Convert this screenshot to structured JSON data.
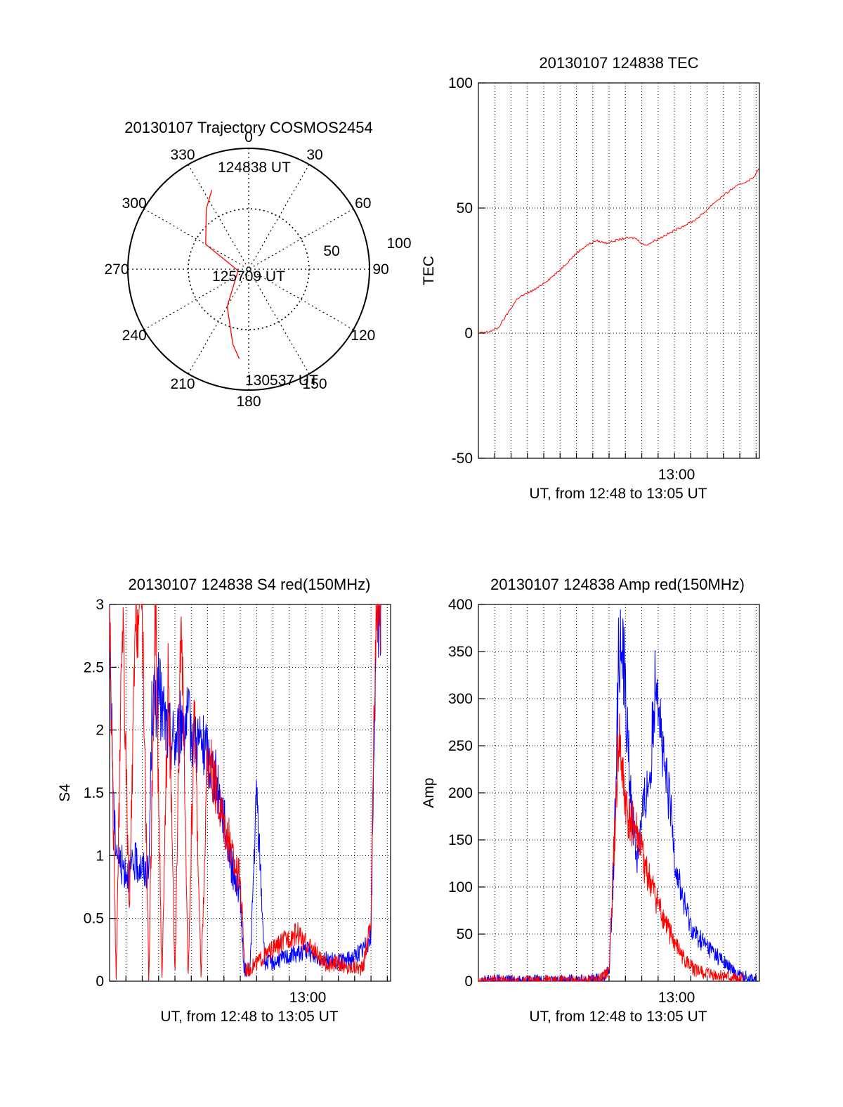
{
  "colors": {
    "red": "#ff0000",
    "blue": "#0000ff",
    "ink": "#000000"
  },
  "chart_data": [
    {
      "type": "polar",
      "title": "20130107 Trajectory COSMOS2454",
      "azimuth_labels": [
        "0",
        "30",
        "60",
        "90",
        "120",
        "150",
        "180",
        "210",
        "240",
        "270",
        "300",
        "330"
      ],
      "radial_labels": [
        "50",
        "100"
      ],
      "grid": true,
      "track": {
        "color": "red",
        "points": [
          {
            "az": 335,
            "el": 25
          },
          {
            "az": 325,
            "el": 35
          },
          {
            "az": 300,
            "el": 53
          },
          {
            "az": 262,
            "el": 82
          },
          {
            "az": 210,
            "el": 58
          },
          {
            "az": 192,
            "el": 33
          },
          {
            "az": 186,
            "el": 23
          }
        ],
        "labels": [
          {
            "text": "124838 UT"
          },
          {
            "text": "125709 UT"
          },
          {
            "text": "130537 UT"
          }
        ]
      }
    },
    {
      "type": "line",
      "title": "20130107 124838 TEC",
      "xlabel": "UT, from 12:48 to 13:05 UT",
      "ylabel": "TEC",
      "xtick_label": "13:00",
      "ylim": [
        -50,
        100
      ],
      "yticks": [
        "-50",
        "0",
        "50",
        "100"
      ],
      "grid": true,
      "series": [
        {
          "color": "red",
          "x_minutes": [
            0.0,
            0.6,
            1.2,
            1.8,
            2.4,
            3.0,
            3.6,
            4.2,
            4.8,
            5.4,
            6.0,
            6.6,
            7.2,
            7.8,
            8.4,
            9.0,
            9.6,
            10.2,
            10.8,
            11.4,
            12.0,
            12.6,
            13.2,
            13.8,
            14.4,
            15.0,
            15.6,
            16.2,
            16.8,
            17.2
          ],
          "values": [
            0.0,
            0.5,
            2.0,
            8.0,
            14.0,
            16.0,
            18.0,
            21.0,
            24.0,
            28.0,
            32.0,
            35.0,
            37.0,
            36.0,
            37.0,
            38.0,
            38.0,
            35.0,
            37.0,
            39.0,
            41.0,
            43.0,
            45.0,
            48.0,
            52.0,
            55.0,
            58.0,
            60.0,
            62.0,
            66.0
          ]
        }
      ]
    },
    {
      "type": "line",
      "title": "20130107 124838 S4 red(150MHz)",
      "xlabel": "UT, from 12:48 to 13:05 UT",
      "ylabel": "S4",
      "xtick_label": "13:00",
      "ylim": [
        0,
        3
      ],
      "yticks": [
        "0",
        "0.5",
        "1",
        "1.5",
        "2",
        "2.5",
        "3"
      ],
      "grid": true,
      "series": [
        {
          "color": "blue",
          "x_minutes": [
            0.0,
            0.3,
            0.6,
            0.9,
            1.2,
            1.6,
            2.0,
            2.4,
            2.6,
            3.0,
            3.5,
            4.0,
            4.5,
            5.0,
            5.5,
            6.0,
            6.5,
            7.0,
            7.5,
            8.0,
            8.2,
            8.4,
            8.6,
            9.0,
            9.5,
            10.0,
            10.5,
            11.0,
            11.5,
            12.0,
            12.5,
            13.0,
            13.5,
            14.0,
            14.5,
            15.0,
            15.5,
            16.0,
            16.3,
            16.6
          ],
          "values": [
            2.7,
            1.2,
            0.95,
            0.9,
            0.85,
            0.95,
            0.9,
            0.85,
            2.2,
            2.3,
            2.0,
            1.9,
            2.1,
            2.0,
            1.9,
            1.8,
            1.6,
            1.3,
            0.9,
            0.7,
            0.1,
            0.08,
            0.1,
            1.5,
            0.15,
            0.15,
            0.18,
            0.2,
            0.22,
            0.25,
            0.2,
            0.18,
            0.17,
            0.15,
            0.17,
            0.2,
            0.25,
            0.35,
            2.8,
            3.0
          ]
        },
        {
          "color": "red",
          "x_minutes": [
            0.0,
            0.4,
            0.8,
            1.2,
            1.6,
            2.0,
            2.4,
            2.8,
            3.2,
            3.6,
            4.0,
            4.4,
            4.8,
            5.2,
            5.6,
            6.0,
            6.5,
            7.0,
            7.5,
            8.0,
            8.3,
            8.6,
            9.0,
            9.5,
            10.0,
            10.5,
            11.0,
            11.5,
            12.0,
            12.5,
            13.0,
            13.5,
            14.0,
            14.5,
            15.0,
            15.5,
            16.0,
            16.3,
            16.6
          ],
          "values": [
            3.0,
            0.0,
            3.0,
            0.5,
            2.9,
            3.0,
            0.0,
            3.0,
            0.0,
            2.5,
            0.0,
            3.0,
            0.0,
            2.2,
            0.0,
            1.8,
            1.5,
            1.3,
            1.0,
            0.8,
            0.1,
            0.1,
            0.15,
            0.2,
            0.25,
            0.3,
            0.35,
            0.38,
            0.3,
            0.25,
            0.15,
            0.12,
            0.15,
            0.1,
            0.12,
            0.1,
            0.5,
            3.0,
            3.0
          ]
        }
      ]
    },
    {
      "type": "line",
      "title": "20130107 124838 Amp red(150MHz)",
      "xlabel": "UT, from 12:48 to 13:05 UT",
      "ylabel": "Amp",
      "xtick_label": "13:00",
      "ylim": [
        0,
        400
      ],
      "yticks": [
        "0",
        "50",
        "100",
        "150",
        "200",
        "250",
        "300",
        "350",
        "400"
      ],
      "grid": true,
      "series": [
        {
          "color": "blue",
          "x_minutes": [
            0.0,
            2.0,
            4.0,
            6.0,
            7.5,
            8.0,
            8.3,
            8.6,
            8.9,
            9.3,
            9.7,
            10.1,
            10.5,
            10.9,
            11.3,
            11.7,
            12.1,
            12.6,
            13.2,
            13.8,
            14.4,
            15.0,
            15.6,
            16.2,
            17.0
          ],
          "values": [
            1,
            1,
            1,
            1,
            2,
            10,
            130,
            360,
            340,
            200,
            130,
            180,
            220,
            340,
            230,
            190,
            120,
            80,
            50,
            40,
            30,
            20,
            10,
            5,
            2
          ]
        },
        {
          "color": "red",
          "x_minutes": [
            0.0,
            2.0,
            4.0,
            6.0,
            7.5,
            8.0,
            8.3,
            8.6,
            8.9,
            9.2,
            9.5,
            9.8,
            10.2,
            10.6,
            11.0,
            11.5,
            12.0,
            12.5,
            13.0,
            13.5,
            14.0,
            14.5,
            15.0,
            15.5,
            16.2
          ],
          "values": [
            0,
            0,
            0,
            0,
            2,
            10,
            140,
            260,
            200,
            170,
            165,
            150,
            120,
            100,
            80,
            60,
            40,
            25,
            15,
            10,
            8,
            6,
            5,
            3,
            2
          ]
        }
      ]
    }
  ]
}
